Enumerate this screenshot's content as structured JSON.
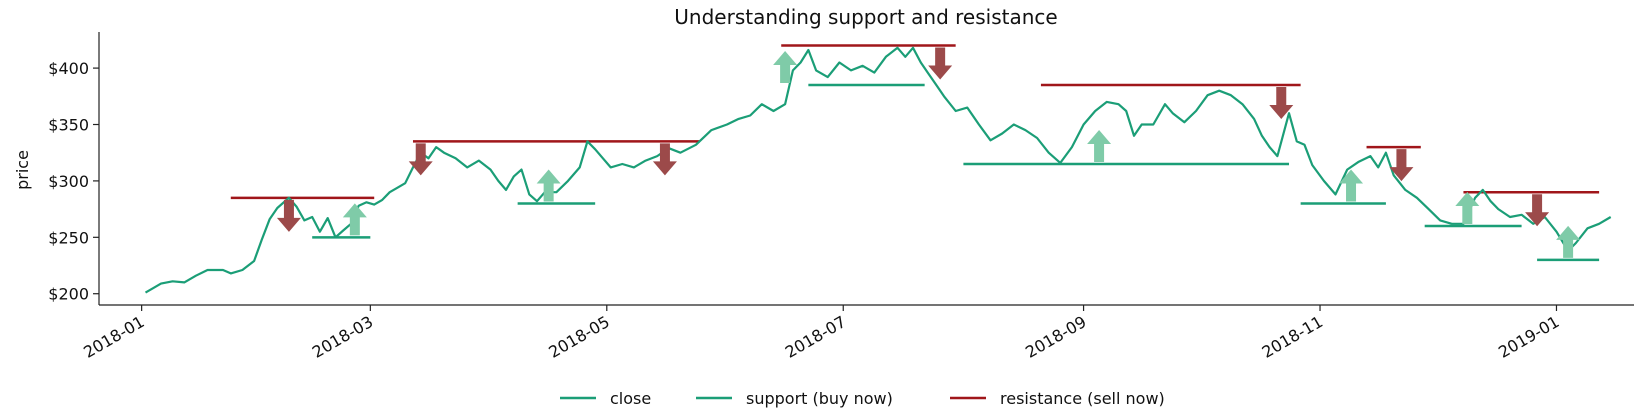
{
  "chart_data": {
    "type": "line",
    "title": "Understanding support and resistance",
    "xlabel": "",
    "ylabel": "price",
    "x_range": [
      "2017-12-21",
      "2019-01-21"
    ],
    "ylim": [
      190,
      432
    ],
    "grid": false,
    "legend_placement": "bottom-center",
    "x_tick_labels": [
      "2018-01",
      "2018-03",
      "2018-05",
      "2018-07",
      "2018-09",
      "2018-11",
      "2019-01"
    ],
    "x_tick_dates": [
      "2018-01-01",
      "2018-03-01",
      "2018-05-01",
      "2018-07-01",
      "2018-09-01",
      "2018-11-01",
      "2019-01-01"
    ],
    "y_ticks": [
      200,
      250,
      300,
      350,
      400
    ],
    "y_tick_labels": [
      "$200",
      "$250",
      "$300",
      "$350",
      "$400"
    ],
    "colors": {
      "close": "#1b9e77",
      "support": "#1b9e77",
      "resistance": "#a0161a",
      "support_arrow": "#7fcba8",
      "resistance_arrow": "#9c4a4a"
    },
    "series": [
      {
        "name": "close",
        "points": [
          [
            "2018-01-02",
            201
          ],
          [
            "2018-01-04",
            205
          ],
          [
            "2018-01-06",
            209
          ],
          [
            "2018-01-09",
            211
          ],
          [
            "2018-01-12",
            210
          ],
          [
            "2018-01-15",
            216
          ],
          [
            "2018-01-18",
            221
          ],
          [
            "2018-01-22",
            221
          ],
          [
            "2018-01-24",
            218
          ],
          [
            "2018-01-27",
            221
          ],
          [
            "2018-01-30",
            229
          ],
          [
            "2018-02-01",
            248
          ],
          [
            "2018-02-03",
            266
          ],
          [
            "2018-02-05",
            276
          ],
          [
            "2018-02-08",
            285
          ],
          [
            "2018-02-10",
            277
          ],
          [
            "2018-02-12",
            265
          ],
          [
            "2018-02-14",
            268
          ],
          [
            "2018-02-16",
            255
          ],
          [
            "2018-02-18",
            267
          ],
          [
            "2018-02-20",
            250
          ],
          [
            "2018-02-22",
            256
          ],
          [
            "2018-02-24",
            262
          ],
          [
            "2018-02-26",
            278
          ],
          [
            "2018-02-28",
            281
          ],
          [
            "2018-03-02",
            279
          ],
          [
            "2018-03-04",
            283
          ],
          [
            "2018-03-06",
            290
          ],
          [
            "2018-03-08",
            294
          ],
          [
            "2018-03-10",
            298
          ],
          [
            "2018-03-12",
            312
          ],
          [
            "2018-03-14",
            325
          ],
          [
            "2018-03-16",
            320
          ],
          [
            "2018-03-18",
            330
          ],
          [
            "2018-03-20",
            325
          ],
          [
            "2018-03-23",
            320
          ],
          [
            "2018-03-26",
            312
          ],
          [
            "2018-03-29",
            318
          ],
          [
            "2018-04-01",
            310
          ],
          [
            "2018-04-03",
            300
          ],
          [
            "2018-04-05",
            292
          ],
          [
            "2018-04-07",
            304
          ],
          [
            "2018-04-09",
            310
          ],
          [
            "2018-04-11",
            288
          ],
          [
            "2018-04-13",
            282
          ],
          [
            "2018-04-15",
            290
          ],
          [
            "2018-04-18",
            290
          ],
          [
            "2018-04-21",
            300
          ],
          [
            "2018-04-24",
            312
          ],
          [
            "2018-04-26",
            335
          ],
          [
            "2018-04-28",
            328
          ],
          [
            "2018-04-30",
            320
          ],
          [
            "2018-05-02",
            312
          ],
          [
            "2018-05-05",
            315
          ],
          [
            "2018-05-08",
            312
          ],
          [
            "2018-05-11",
            318
          ],
          [
            "2018-05-14",
            322
          ],
          [
            "2018-05-17",
            329
          ],
          [
            "2018-05-20",
            325
          ],
          [
            "2018-05-24",
            332
          ],
          [
            "2018-05-28",
            345
          ],
          [
            "2018-06-01",
            350
          ],
          [
            "2018-06-04",
            355
          ],
          [
            "2018-06-07",
            358
          ],
          [
            "2018-06-10",
            368
          ],
          [
            "2018-06-13",
            362
          ],
          [
            "2018-06-16",
            368
          ],
          [
            "2018-06-18",
            398
          ],
          [
            "2018-06-20",
            405
          ],
          [
            "2018-06-22",
            416
          ],
          [
            "2018-06-24",
            398
          ],
          [
            "2018-06-27",
            392
          ],
          [
            "2018-06-30",
            405
          ],
          [
            "2018-07-03",
            398
          ],
          [
            "2018-07-06",
            402
          ],
          [
            "2018-07-09",
            396
          ],
          [
            "2018-07-12",
            410
          ],
          [
            "2018-07-15",
            418
          ],
          [
            "2018-07-17",
            410
          ],
          [
            "2018-07-19",
            418
          ],
          [
            "2018-07-21",
            405
          ],
          [
            "2018-07-23",
            395
          ],
          [
            "2018-07-25",
            385
          ],
          [
            "2018-07-27",
            375
          ],
          [
            "2018-07-30",
            362
          ],
          [
            "2018-08-02",
            365
          ],
          [
            "2018-08-05",
            350
          ],
          [
            "2018-08-08",
            336
          ],
          [
            "2018-08-11",
            342
          ],
          [
            "2018-08-14",
            350
          ],
          [
            "2018-08-17",
            345
          ],
          [
            "2018-08-20",
            338
          ],
          [
            "2018-08-23",
            325
          ],
          [
            "2018-08-26",
            316
          ],
          [
            "2018-08-29",
            330
          ],
          [
            "2018-09-01",
            350
          ],
          [
            "2018-09-04",
            362
          ],
          [
            "2018-09-07",
            370
          ],
          [
            "2018-09-10",
            368
          ],
          [
            "2018-09-12",
            362
          ],
          [
            "2018-09-14",
            340
          ],
          [
            "2018-09-16",
            350
          ],
          [
            "2018-09-19",
            350
          ],
          [
            "2018-09-22",
            368
          ],
          [
            "2018-09-24",
            360
          ],
          [
            "2018-09-27",
            352
          ],
          [
            "2018-09-30",
            362
          ],
          [
            "2018-10-03",
            376
          ],
          [
            "2018-10-06",
            380
          ],
          [
            "2018-10-09",
            376
          ],
          [
            "2018-10-12",
            368
          ],
          [
            "2018-10-15",
            355
          ],
          [
            "2018-10-17",
            340
          ],
          [
            "2018-10-19",
            330
          ],
          [
            "2018-10-21",
            322
          ],
          [
            "2018-10-24",
            360
          ],
          [
            "2018-10-26",
            335
          ],
          [
            "2018-10-28",
            332
          ],
          [
            "2018-10-30",
            314
          ],
          [
            "2018-11-02",
            300
          ],
          [
            "2018-11-05",
            288
          ],
          [
            "2018-11-08",
            310
          ],
          [
            "2018-11-11",
            317
          ],
          [
            "2018-11-14",
            322
          ],
          [
            "2018-11-16",
            312
          ],
          [
            "2018-11-18",
            325
          ],
          [
            "2018-11-20",
            305
          ],
          [
            "2018-11-23",
            292
          ],
          [
            "2018-11-26",
            285
          ],
          [
            "2018-11-29",
            275
          ],
          [
            "2018-12-02",
            265
          ],
          [
            "2018-12-05",
            262
          ],
          [
            "2018-12-08",
            262
          ],
          [
            "2018-12-11",
            285
          ],
          [
            "2018-12-13",
            292
          ],
          [
            "2018-12-15",
            282
          ],
          [
            "2018-12-17",
            275
          ],
          [
            "2018-12-20",
            268
          ],
          [
            "2018-12-23",
            270
          ],
          [
            "2018-12-26",
            262
          ],
          [
            "2018-12-29",
            268
          ],
          [
            "2019-01-01",
            255
          ],
          [
            "2019-01-04",
            238
          ],
          [
            "2019-01-06",
            245
          ],
          [
            "2019-01-09",
            258
          ],
          [
            "2019-01-12",
            262
          ],
          [
            "2019-01-15",
            268
          ]
        ]
      },
      {
        "name": "support (buy now)",
        "segments": [
          {
            "start": "2018-02-14",
            "end": "2018-03-01",
            "value": 250
          },
          {
            "start": "2018-04-08",
            "end": "2018-04-28",
            "value": 280
          },
          {
            "start": "2018-06-22",
            "end": "2018-07-22",
            "value": 385
          },
          {
            "start": "2018-08-01",
            "end": "2018-10-24",
            "value": 315
          },
          {
            "start": "2018-10-27",
            "end": "2018-11-18",
            "value": 280
          },
          {
            "start": "2018-11-28",
            "end": "2018-12-23",
            "value": 260
          },
          {
            "start": "2018-12-27",
            "end": "2019-01-12",
            "value": 230
          }
        ]
      },
      {
        "name": "resistance (sell now)",
        "segments": [
          {
            "start": "2018-01-24",
            "end": "2018-03-02",
            "value": 285
          },
          {
            "start": "2018-03-12",
            "end": "2018-05-25",
            "value": 335
          },
          {
            "start": "2018-06-15",
            "end": "2018-07-30",
            "value": 420
          },
          {
            "start": "2018-08-21",
            "end": "2018-10-27",
            "value": 385
          },
          {
            "start": "2018-11-13",
            "end": "2018-11-27",
            "value": 330
          },
          {
            "start": "2018-12-08",
            "end": "2019-01-12",
            "value": 290
          }
        ]
      }
    ],
    "support_arrows": [
      {
        "date": "2018-02-25",
        "value": 250
      },
      {
        "date": "2018-04-16",
        "value": 280
      },
      {
        "date": "2018-06-16",
        "value": 385
      },
      {
        "date": "2018-09-05",
        "value": 315
      },
      {
        "date": "2018-11-09",
        "value": 280
      },
      {
        "date": "2018-12-09",
        "value": 260
      },
      {
        "date": "2019-01-04",
        "value": 230
      }
    ],
    "resistance_arrows": [
      {
        "date": "2018-02-08",
        "value": 285
      },
      {
        "date": "2018-03-14",
        "value": 335
      },
      {
        "date": "2018-05-16",
        "value": 335
      },
      {
        "date": "2018-07-26",
        "value": 420
      },
      {
        "date": "2018-10-22",
        "value": 385
      },
      {
        "date": "2018-11-22",
        "value": 330
      },
      {
        "date": "2018-12-27",
        "value": 290
      }
    ],
    "legend": [
      {
        "label": "close",
        "color": "#1b9e77"
      },
      {
        "label": "support (buy now)",
        "color": "#1b9e77"
      },
      {
        "label": "resistance (sell now)",
        "color": "#a0161a"
      }
    ]
  }
}
